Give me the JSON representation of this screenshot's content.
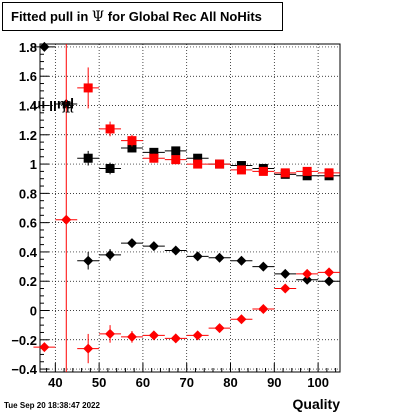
{
  "title_prefix": "Fitted pull in",
  "title_symbol": "Ψ",
  "title_suffix": "for Global Rec All NoHits",
  "ylabel_prefix": "pull in",
  "ylabel_symbol": "Ψ",
  "xlabel": "Quality",
  "datestamp": "Tue Sep 20 18:38:47 2022",
  "colors": {
    "black": "#000000",
    "red": "#ff0000",
    "grid": "#000000"
  },
  "chart_data": {
    "type": "scatter",
    "title": "Fitted pull in Ψ for Global Rec All NoHits",
    "xlabel": "Quality",
    "ylabel": "pull in Ψ",
    "xlim": [
      36.5,
      105.0
    ],
    "ylim": [
      -0.42,
      1.82
    ],
    "grid": true,
    "x_ticks": [
      40,
      50,
      60,
      70,
      80,
      90,
      100
    ],
    "x_tick_labels": [
      "40",
      "50",
      "60",
      "70",
      "80",
      "90",
      "100"
    ],
    "y_ticks": [
      -0.4,
      -0.2,
      0,
      0.2,
      0.4,
      0.6,
      0.8,
      1,
      1.2,
      1.4,
      1.6,
      1.8
    ],
    "y_tick_labels": [
      "−0.4",
      "−0.2",
      "0",
      "0.2",
      "0.4",
      "0.6",
      "0.8",
      "1",
      "1.2",
      "1.4",
      "1.6",
      "1.8"
    ],
    "series": [
      {
        "color": "#000000",
        "marker": "square",
        "x": [
          47.5,
          52.5,
          57.5,
          62.5,
          67.5,
          72.5,
          77.5,
          82.5,
          87.5,
          92.5,
          97.5,
          102.5
        ],
        "y": [
          1.04,
          0.97,
          1.11,
          1.08,
          1.09,
          1.04,
          1.0,
          0.99,
          0.97,
          0.93,
          0.92,
          0.92
        ],
        "yerr": [
          0.05,
          0.04,
          0.03,
          0.02,
          0.02,
          0.02,
          0.02,
          0.02,
          0.02,
          0.02,
          0.02,
          0.02
        ]
      },
      {
        "color": "#ff0000",
        "marker": "square",
        "x": [
          47.5,
          52.5,
          57.5,
          62.5,
          67.5,
          72.5,
          77.5,
          82.5,
          87.5,
          92.5,
          97.5,
          102.5
        ],
        "y": [
          1.52,
          1.24,
          1.16,
          1.04,
          1.03,
          1.0,
          1.0,
          0.96,
          0.95,
          0.94,
          0.95,
          0.94
        ],
        "yerr": [
          0.14,
          0.05,
          0.04,
          0.03,
          0.03,
          0.02,
          0.02,
          0.02,
          0.02,
          0.02,
          0.02,
          0.02
        ]
      },
      {
        "color": "#000000",
        "marker": "diamond",
        "x": [
          37.5,
          42.5,
          47.5,
          52.5,
          57.5,
          62.5,
          67.5,
          72.5,
          77.5,
          82.5,
          87.5,
          92.5,
          97.5,
          102.5
        ],
        "y": [
          1.8,
          1.41,
          0.34,
          0.38,
          0.46,
          0.44,
          0.41,
          0.37,
          0.36,
          0.34,
          0.3,
          0.25,
          0.21,
          0.2
        ],
        "yerr": [
          0.02,
          0.02,
          0.06,
          0.04,
          0.02,
          0.02,
          0.02,
          0.02,
          0.02,
          0.02,
          0.02,
          0.02,
          0.02,
          0.02
        ]
      },
      {
        "color": "#ff0000",
        "marker": "diamond",
        "x": [
          37.5,
          42.5,
          47.5,
          52.5,
          57.5,
          62.5,
          67.5,
          72.5,
          77.5,
          82.5,
          87.5,
          92.5,
          97.5,
          102.5
        ],
        "y": [
          -0.25,
          0.62,
          -0.26,
          -0.16,
          -0.18,
          -0.17,
          -0.19,
          -0.17,
          -0.12,
          -0.06,
          0.01,
          0.15,
          0.25,
          0.26
        ],
        "yerr": [
          0.02,
          1.8,
          0.1,
          0.06,
          0.04,
          0.03,
          0.03,
          0.03,
          0.02,
          0.02,
          0.02,
          0.02,
          0.02,
          0.02
        ]
      }
    ]
  }
}
